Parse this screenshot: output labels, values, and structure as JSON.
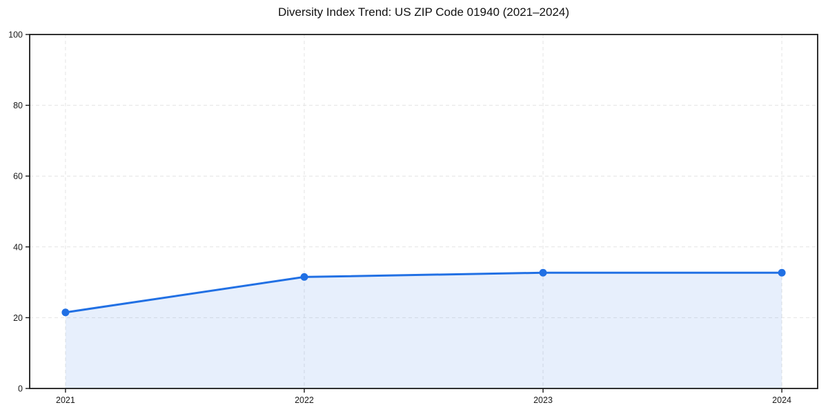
{
  "chart_data": {
    "type": "area",
    "title": "Diversity Index Trend: US ZIP Code 01940 (2021–2024)",
    "x": [
      2021,
      2022,
      2023,
      2024
    ],
    "series": [
      {
        "name": "Diversity Index",
        "values": [
          21.5,
          31.5,
          32.7,
          32.7
        ]
      }
    ],
    "xlabel": "",
    "ylabel": "",
    "xticks": [
      2021,
      2022,
      2023,
      2024
    ],
    "yticks": [
      0,
      20,
      40,
      60,
      80,
      100
    ],
    "xlim": [
      2020.85,
      2024.15
    ],
    "ylim": [
      0,
      100
    ],
    "grid": true,
    "grid_style": "dashed",
    "legend": "none",
    "colors": {
      "line": "#2170e4",
      "marker": "#2170e4",
      "fill": "#2170e4",
      "fill_opacity": 0.11,
      "grid": "#e4e4e4",
      "frame": "#1a1a1a",
      "text": "#1a1a1a",
      "background": "#ffffff"
    }
  }
}
